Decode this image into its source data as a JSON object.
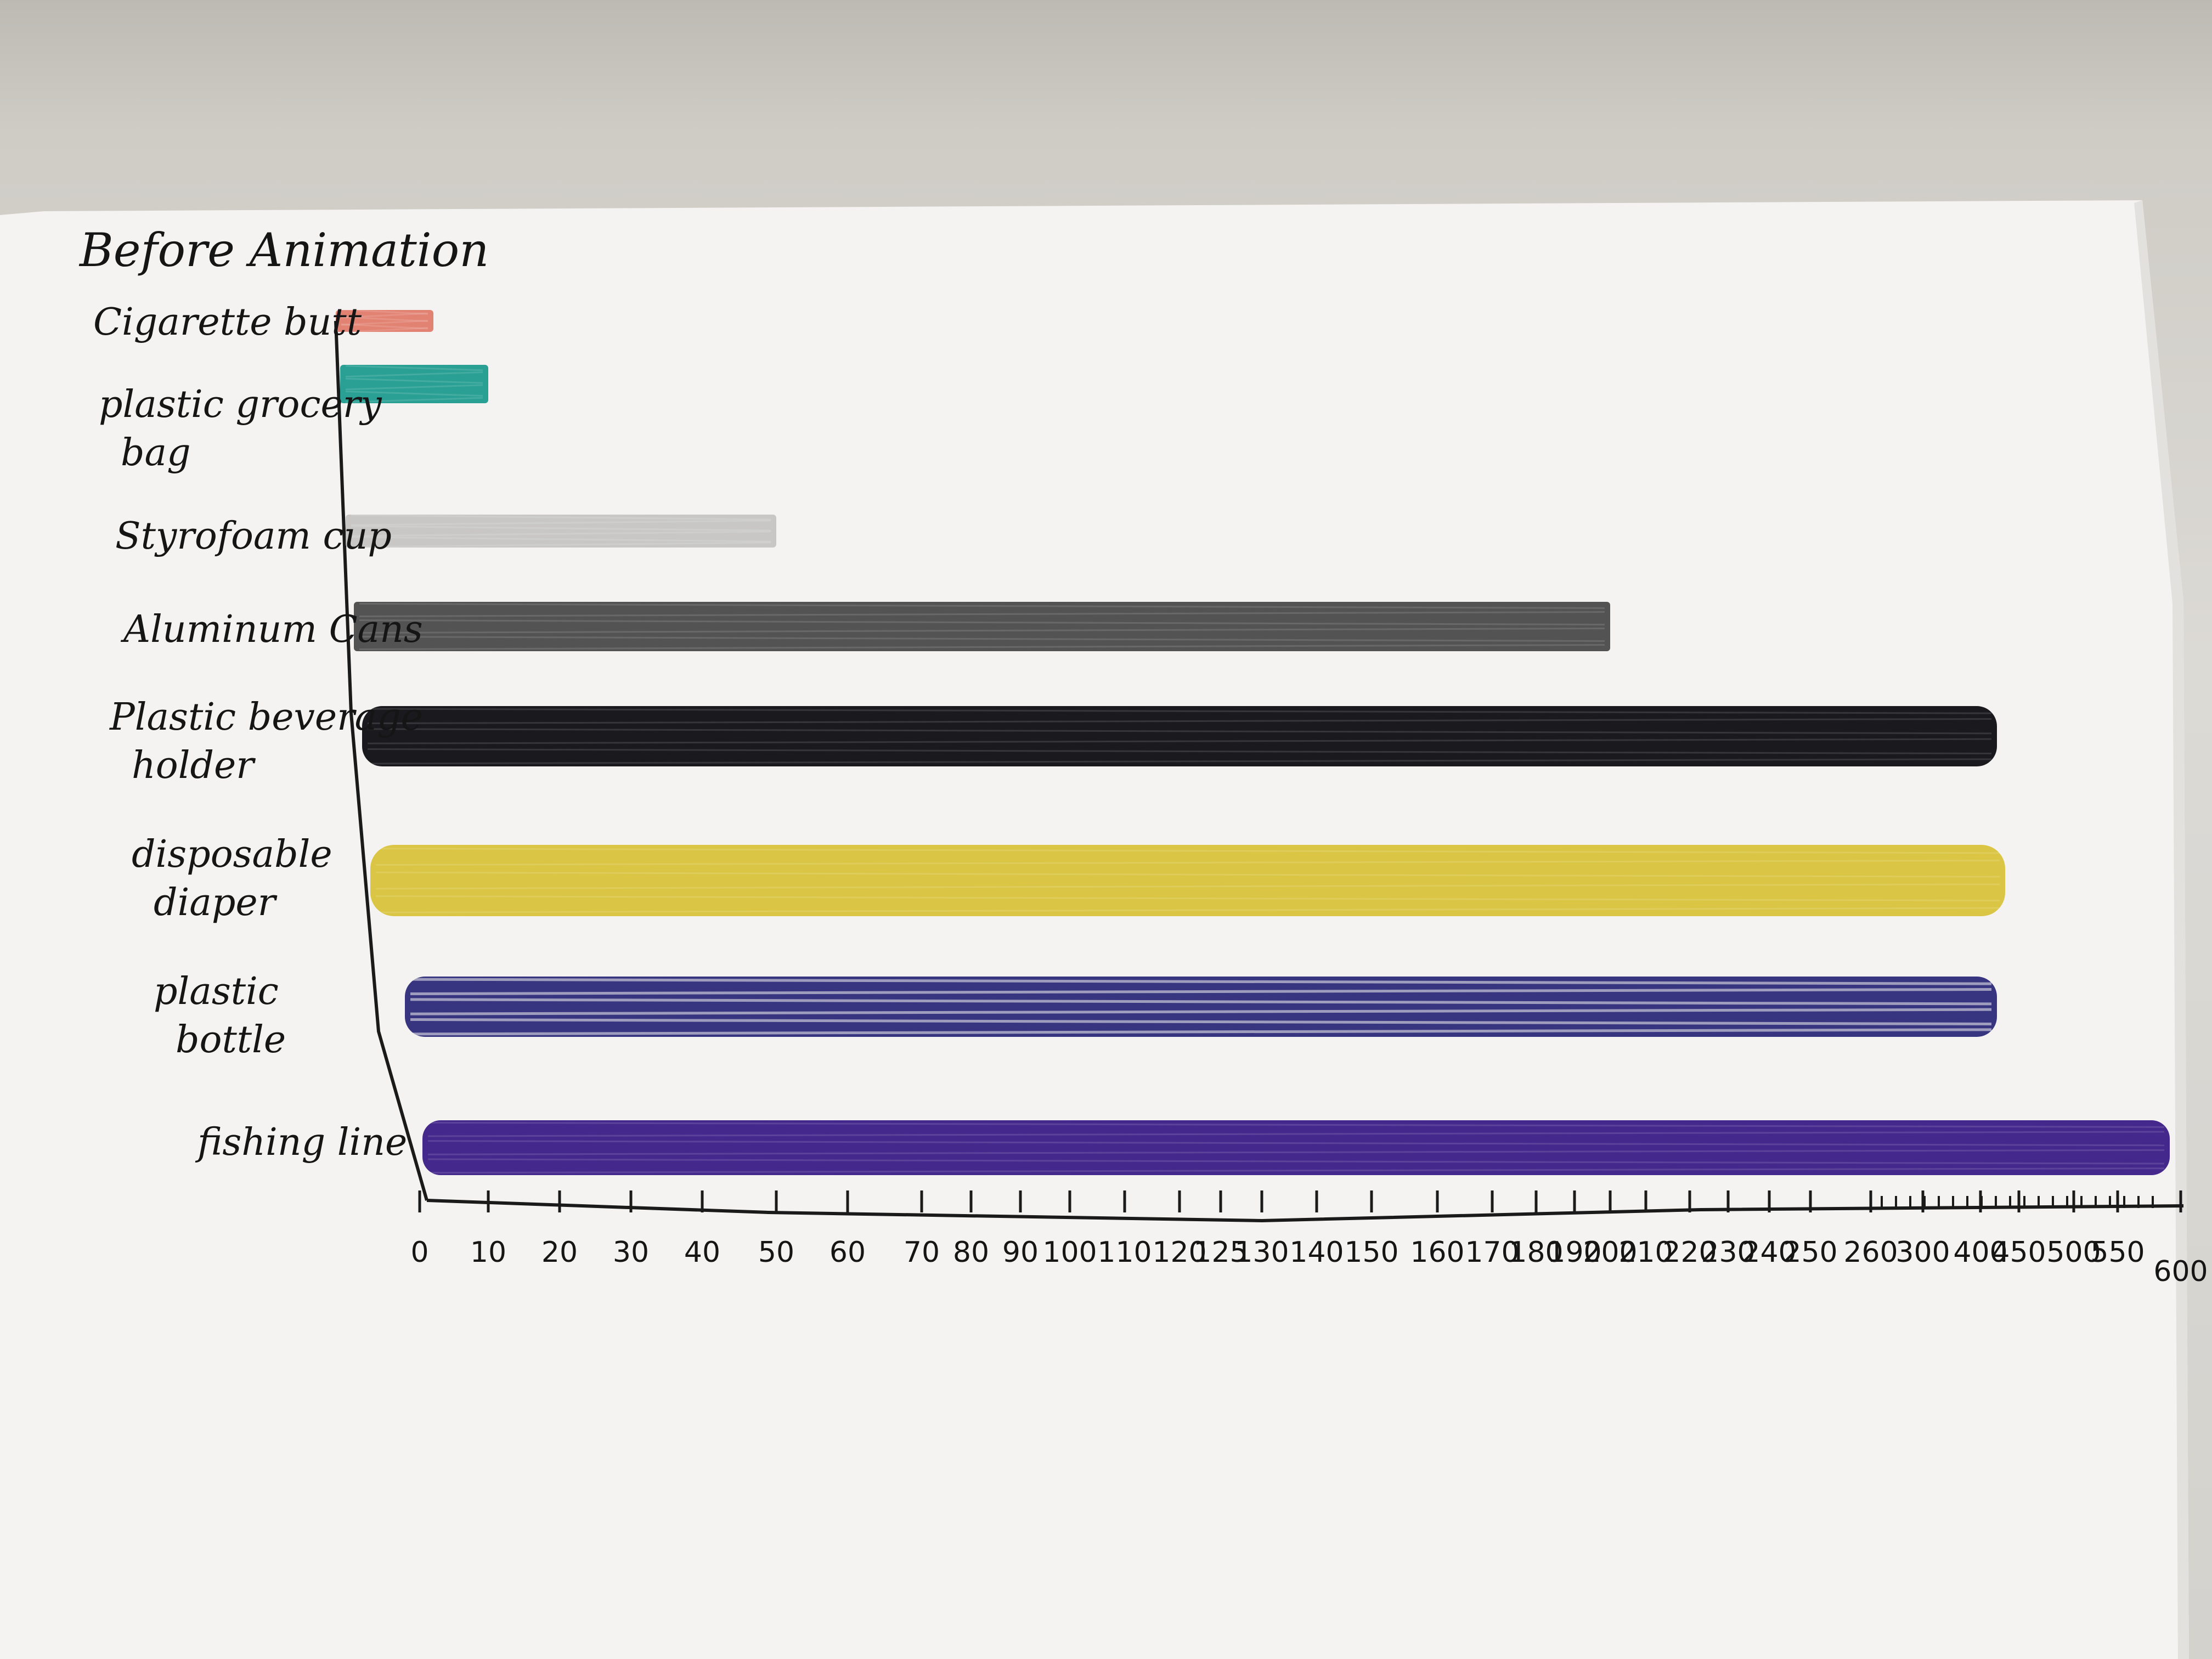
{
  "chart_data": {
    "type": "bar",
    "orientation": "horizontal",
    "title": "Before Animation",
    "xlabel": "",
    "ylabel": "",
    "xlim": [
      0,
      600
    ],
    "grid": false,
    "legend": "none",
    "categories": [
      "Cigarette butt",
      "plastic grocery bag",
      "Styrofoam cup",
      "Aluminum Cans",
      "Plastic beverage holder",
      "disposable diaper",
      "plastic bottle",
      "fishing line"
    ],
    "values": [
      2,
      10,
      50,
      200,
      400,
      450,
      450,
      600
    ],
    "colors": [
      "#e07b6a",
      "#1f9a8e",
      "#b9b8b6",
      "#4a4a4a",
      "#0d0d12",
      "#d8c23a",
      "#2c2a78",
      "#3b1c86"
    ],
    "ticks": [
      "0",
      "10",
      "20",
      "30",
      "40",
      "50",
      "60",
      "70",
      "80",
      "90",
      "100",
      "110",
      "120",
      "125",
      "130",
      "140",
      "150",
      "160",
      "170",
      "180",
      "190",
      "200",
      "210",
      "220",
      "230",
      "240",
      "250",
      "260",
      "300",
      "400",
      "450",
      "500",
      "550",
      "600"
    ]
  }
}
